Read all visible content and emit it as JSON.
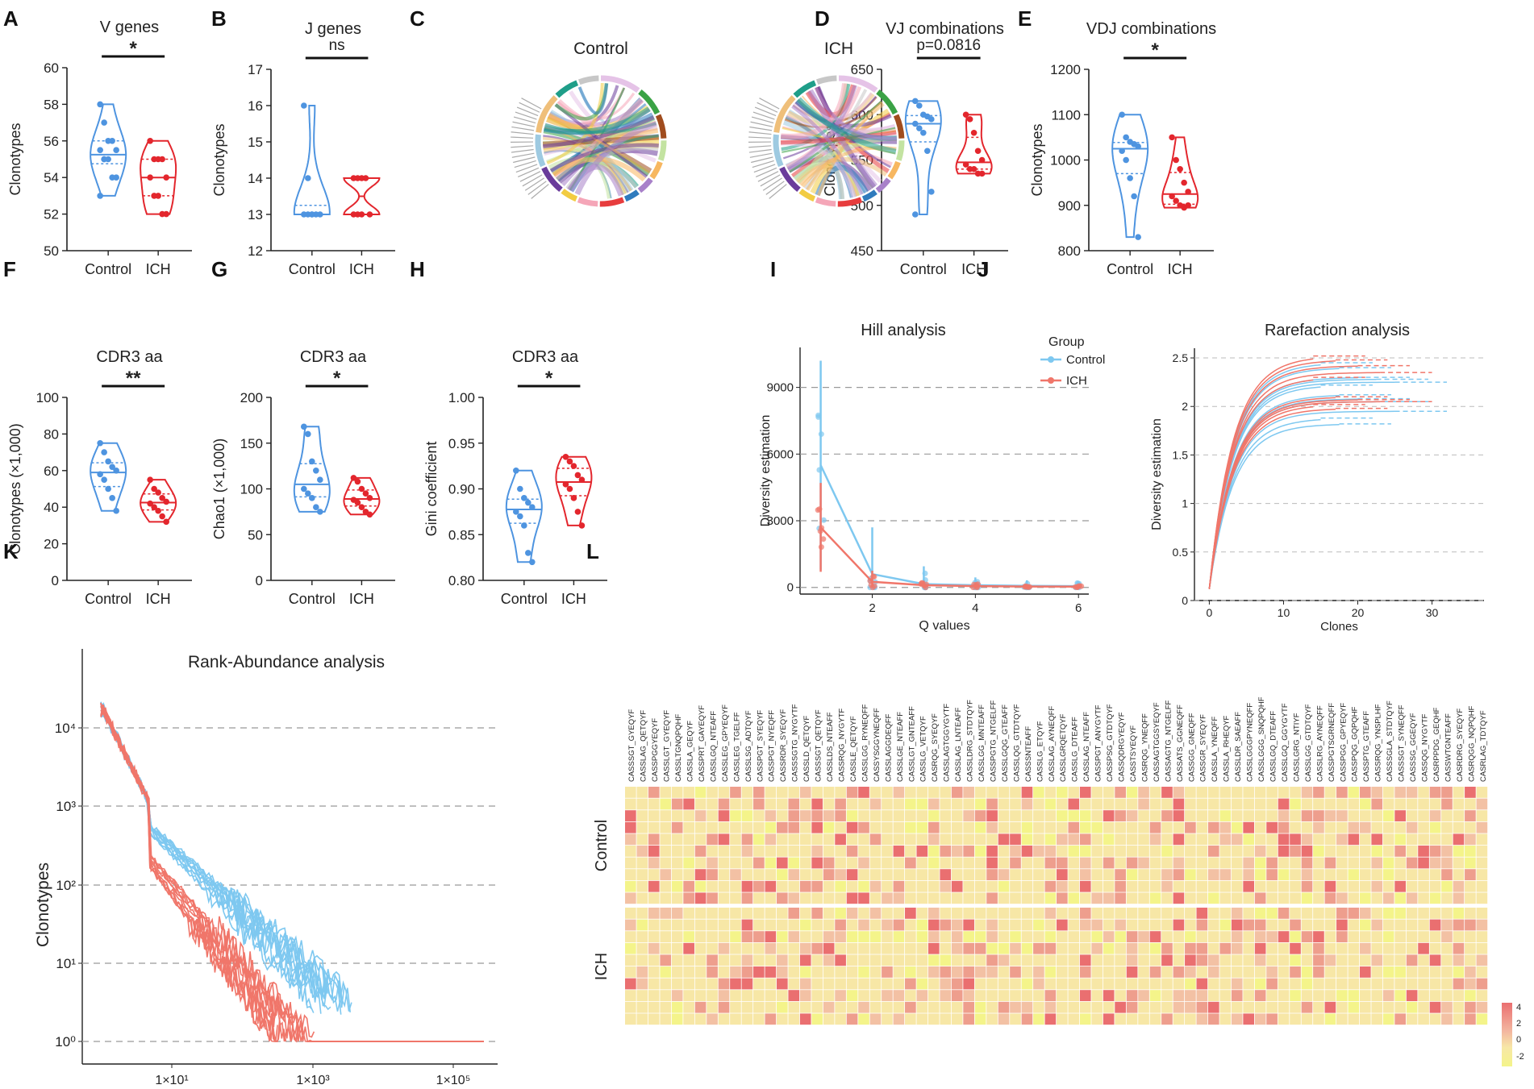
{
  "colors": {
    "control": "#4e94e0",
    "ich": "#e3262d",
    "control_light": "#7ec8f0",
    "ich_light": "#f0766a",
    "heat_low": "#f4f48a",
    "heat_mid": "#f7e7a6",
    "heat_high": "#ea6f70"
  },
  "panel_letters": {
    "A": "A",
    "B": "B",
    "C": "C",
    "D": "D",
    "E": "E",
    "F": "F",
    "G": "G",
    "H": "H",
    "I": "I",
    "J": "J",
    "K": "K",
    "L": "L"
  },
  "chart_data": [
    {
      "id": "A",
      "type": "violin",
      "title": "V genes",
      "ylabel": "Clonotypes",
      "categories": [
        "Control",
        "ICH"
      ],
      "ylim": [
        50,
        60
      ],
      "ticks": [
        50,
        52,
        54,
        56,
        58,
        60
      ],
      "significance": "*",
      "series": [
        {
          "name": "Control",
          "values": [
            58,
            57,
            56,
            56,
            55.5,
            55.5,
            55,
            55,
            54,
            54,
            53,
            55
          ]
        },
        {
          "name": "ICH",
          "values": [
            56,
            55,
            55,
            55,
            54,
            54,
            53,
            53,
            52,
            52
          ]
        }
      ]
    },
    {
      "id": "B",
      "type": "violin",
      "title": "J genes",
      "ylabel": "Clonotypes",
      "categories": [
        "Control",
        "ICH"
      ],
      "ylim": [
        12,
        17
      ],
      "ticks": [
        12,
        13,
        14,
        15,
        16,
        17
      ],
      "significance": "ns",
      "series": [
        {
          "name": "Control",
          "values": [
            16,
            14,
            13,
            13,
            13,
            13,
            13,
            13
          ]
        },
        {
          "name": "ICH",
          "values": [
            14,
            14,
            14,
            14,
            13,
            13,
            13,
            13
          ]
        }
      ]
    },
    {
      "id": "C",
      "type": "chord",
      "titles": [
        "Control",
        "ICH"
      ]
    },
    {
      "id": "D",
      "type": "violin",
      "title": "VJ combinations",
      "ylabel": "Clonotypes",
      "categories": [
        "Control",
        "ICH"
      ],
      "ylim": [
        450,
        650
      ],
      "ticks": [
        450,
        500,
        550,
        600,
        650
      ],
      "significance": "p=0.0816",
      "series": [
        {
          "name": "Control",
          "values": [
            615,
            610,
            600,
            598,
            595,
            590,
            585,
            580,
            560,
            515,
            490
          ]
        },
        {
          "name": "ICH",
          "values": [
            600,
            595,
            580,
            560,
            550,
            545,
            540,
            540,
            535,
            535
          ]
        }
      ]
    },
    {
      "id": "E",
      "type": "violin",
      "title": "VDJ combinations",
      "ylabel": "Clonotypes",
      "categories": [
        "Control",
        "ICH"
      ],
      "ylim": [
        800,
        1200
      ],
      "ticks": [
        800,
        900,
        1000,
        1100,
        1200
      ],
      "significance": "*",
      "series": [
        {
          "name": "Control",
          "values": [
            1100,
            1050,
            1040,
            1035,
            1030,
            1020,
            1000,
            960,
            920,
            830
          ]
        },
        {
          "name": "ICH",
          "values": [
            1050,
            1000,
            980,
            950,
            930,
            920,
            910,
            900,
            895,
            900
          ]
        }
      ]
    },
    {
      "id": "F",
      "type": "violin",
      "title": "CDR3 aa",
      "ylabel": "Clonotypes (×1,000)",
      "categories": [
        "Control",
        "ICH"
      ],
      "ylim": [
        0,
        100
      ],
      "ticks": [
        0,
        20,
        40,
        60,
        80,
        100
      ],
      "significance": "**",
      "series": [
        {
          "name": "Control",
          "values": [
            75,
            70,
            65,
            62,
            60,
            58,
            55,
            50,
            45,
            38
          ]
        },
        {
          "name": "ICH",
          "values": [
            55,
            50,
            48,
            45,
            43,
            42,
            40,
            38,
            35,
            32
          ]
        }
      ]
    },
    {
      "id": "G",
      "type": "violin",
      "title": "CDR3 aa",
      "ylabel": "Chao1 (×1,000)",
      "categories": [
        "Control",
        "ICH"
      ],
      "ylim": [
        0,
        200
      ],
      "ticks": [
        0,
        50,
        100,
        150,
        200
      ],
      "significance": "*",
      "series": [
        {
          "name": "Control",
          "values": [
            168,
            160,
            130,
            120,
            110,
            100,
            95,
            90,
            80,
            75
          ]
        },
        {
          "name": "ICH",
          "values": [
            112,
            108,
            100,
            95,
            90,
            88,
            85,
            80,
            75,
            72
          ]
        }
      ]
    },
    {
      "id": "H",
      "type": "violin",
      "title": "CDR3 aa",
      "ylabel": "Gini coefficient",
      "categories": [
        "Control",
        "ICH"
      ],
      "ylim": [
        0.8,
        1.0
      ],
      "ticks": [
        "0.80",
        "0.85",
        "0.90",
        "0.95",
        "1.00"
      ],
      "significance": "*",
      "series": [
        {
          "name": "Control",
          "values": [
            0.92,
            0.9,
            0.89,
            0.885,
            0.88,
            0.875,
            0.87,
            0.86,
            0.83,
            0.82
          ]
        },
        {
          "name": "ICH",
          "values": [
            0.935,
            0.93,
            0.925,
            0.915,
            0.91,
            0.905,
            0.9,
            0.89,
            0.875,
            0.86
          ]
        }
      ]
    },
    {
      "id": "I",
      "type": "line",
      "title": "Hill analysis",
      "xlabel": "Q values",
      "ylabel": "Diversity estimation",
      "xlim": [
        0.6,
        6.2
      ],
      "ylim": [
        -300,
        10800
      ],
      "xticks": [
        2,
        4,
        6
      ],
      "yticks": [
        0,
        3000,
        6000,
        9000
      ],
      "legend_title": "Group",
      "x": [
        1,
        2,
        3,
        4,
        5,
        6
      ],
      "series": [
        {
          "name": "Control",
          "values": [
            5500,
            600,
            150,
            100,
            70,
            60
          ],
          "error": [
            4700,
            2100,
            800,
            350,
            250,
            200
          ]
        },
        {
          "name": "ICH",
          "values": [
            2700,
            250,
            100,
            60,
            40,
            35
          ],
          "error": [
            2000,
            500,
            200,
            120,
            80,
            60
          ]
        }
      ]
    },
    {
      "id": "J",
      "type": "line",
      "title": "Rarefaction analysis",
      "xlabel": "Clones",
      "ylabel": "Diversity estimation",
      "xlim": [
        -2,
        37
      ],
      "ylim": [
        0,
        2.6
      ],
      "xticks": [
        0,
        10,
        20,
        30
      ],
      "yticks": [
        "0",
        "0.5",
        "1",
        "1.5",
        "2",
        "2.5"
      ],
      "plateaus_control": [
        2.45,
        2.4,
        2.3,
        2.28,
        2.25,
        2.22,
        2.12,
        2.08,
        2.05,
        1.95,
        1.88,
        1.82
      ],
      "plateaus_ich": [
        2.52,
        2.48,
        2.42,
        2.35,
        2.3,
        2.1,
        2.07,
        2.05,
        2.02,
        1.98
      ]
    },
    {
      "id": "K",
      "type": "line",
      "title": "Rank-Abundance analysis",
      "ylabel": "Clonotypes",
      "xscale": "log",
      "yscale": "log",
      "xticks": [
        "1×10¹",
        "1×10³",
        "1×10⁵"
      ],
      "yticks": [
        "10⁰",
        "10¹",
        "10²",
        "10³",
        "10⁴"
      ]
    },
    {
      "id": "L",
      "type": "heatmap",
      "groups": [
        "Control",
        "ICH"
      ],
      "colorbar_ticks": [
        "4",
        "2",
        "0",
        "-2"
      ],
      "columns": [
        "CASSSGT_GYEQYF",
        "CASSLAG_QETQYF",
        "CASSPGGYEQYF",
        "CASSLGT_GYEQYF",
        "CASSLTGNQPQHF",
        "CASSLA_GEQYF",
        "CASSPRT_GAYEQYF",
        "CASSLGQ_NTEAFF",
        "CASSLEG_GPYEQYF",
        "CASSLEG_TGELFF",
        "CASSLSG_ADTQYF",
        "CASSPGT_SYEQYF",
        "CASSPGT_NYEQFF",
        "CASSRDR_SYEQYF",
        "CASSSGTG_NYGYTF",
        "CASSLD_QETQYF",
        "CASSSGT_QETQYF",
        "CASSLDS_NTEAFF",
        "CASSRQG_NYGYTF",
        "CASSLE_QETQYF",
        "CASSLGG_RYNEQFF",
        "CASSYSGGYNEQFF",
        "CASSLAGGDEQFF",
        "CASSLGE_NTEAFF",
        "CASSLGT_GNTEAFF",
        "CASSLG_VETQYF",
        "CASRQG_SYEQYF",
        "CASSLAGTGGYGYTF",
        "CASSLAG_LNTEAFF",
        "CASSLDRG_STDTQYF",
        "CASSLGG_MNTEAFF",
        "CASSPGTG_NTGELFF",
        "CASSLGQG_GTEAFF",
        "CASSLQG_GTDTQYF",
        "CASSSNTEAFF",
        "CASSLG_ETQYF",
        "CASSLAG_AYNEQFF",
        "CASSLGRQETQYF",
        "CASSLG_DTEAFF",
        "CASSLAG_NTEAFF",
        "CASSPGT_ANYGYTF",
        "CASSPSG_GTDTQYF",
        "CASSQDRGYEQYF",
        "CASSTSYEQYF",
        "CASRQG_YNEQFF",
        "CASSAGTGGSYEQYF",
        "CASSAGTG_NTGELFF",
        "CASSATS_GGNEQFF",
        "CASSGG_GNEQFF",
        "CASSGR_SYEQYF",
        "CASSLA_YNEQFF",
        "CASSLA_RHEQYF",
        "CASSLDR_SAEAFF",
        "CASSLGGGPYNEQFF",
        "CASSLGGG_SNQPQHF",
        "CASSLGQ_DTEAFF",
        "CASSLGQ_GGYGYTF",
        "CASSLGRG_NTIYF",
        "CASSLGG_GTDTQYF",
        "CASSLRG_AYNEQFF",
        "CASSPGTSGRNEQFF",
        "CASSPGG_GPYEQYF",
        "CASSPQG_GQPQHF",
        "CASSPTG_GTEAFF",
        "CASSRQG_YNSPLHF",
        "CASSSGLA_STDTQYF",
        "CASSSGT_SYNEQFF",
        "CASSSG_GGEQYF",
        "CASSQG_NYGYTF",
        "CASRPPDG_GEQHF",
        "CASSWTGNTEAFF",
        "CASRDRG_SYEQYF",
        "CASRQGG_NQPQHF",
        "CASRLAG_TDTQYF"
      ]
    }
  ]
}
